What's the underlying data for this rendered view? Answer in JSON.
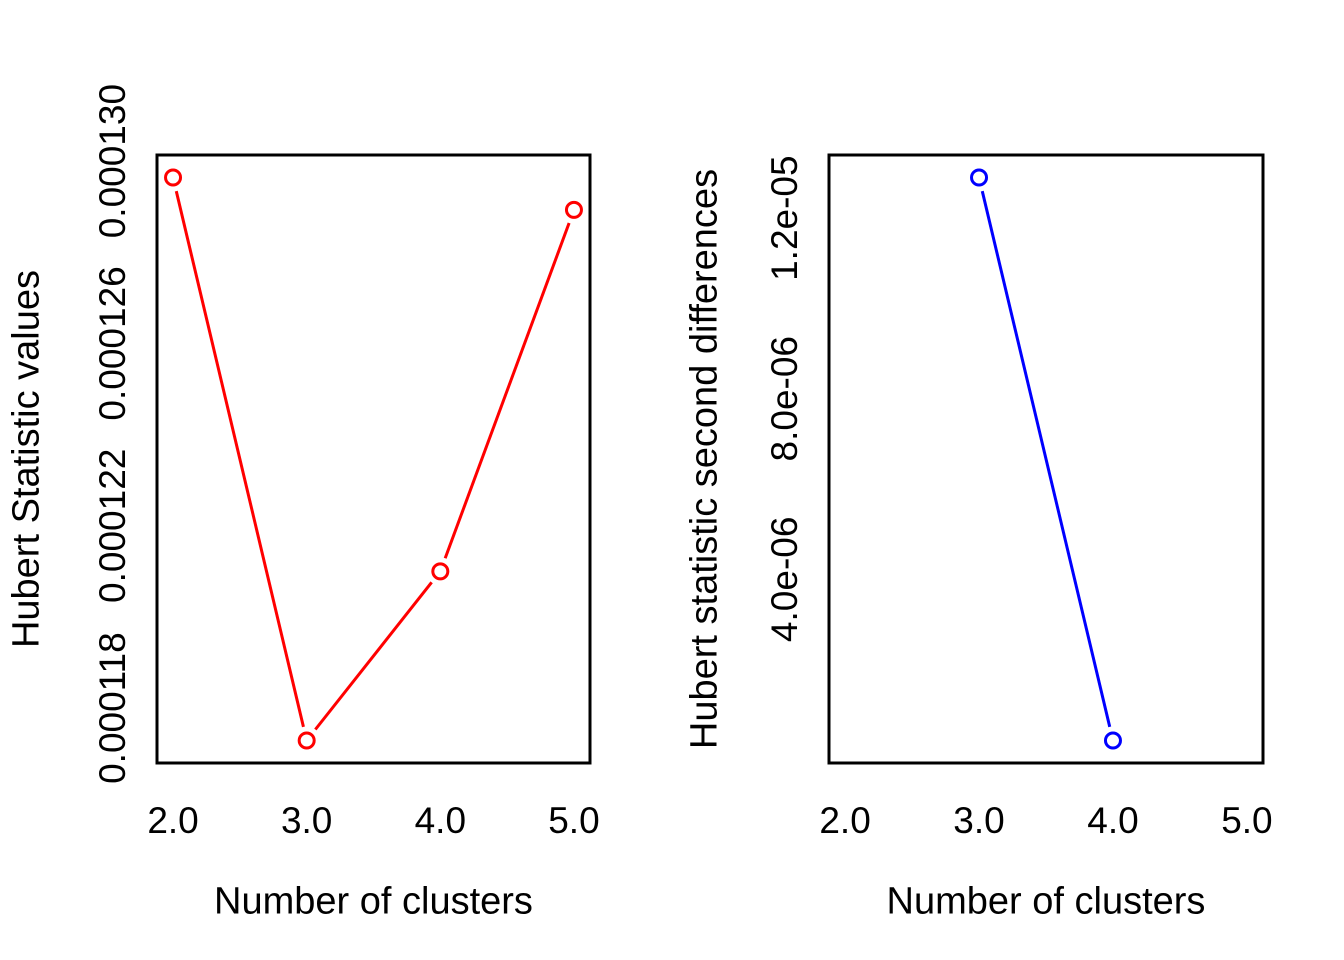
{
  "chart_data": [
    {
      "type": "line",
      "title": "",
      "xlabel": "Number of clusters",
      "ylabel": "Hubert Statistic values",
      "color": "#ff0000",
      "marker": "open-circle",
      "legend": "none",
      "grid": false,
      "x": [
        2,
        3,
        4,
        5
      ],
      "y": [
        0.00012964,
        0.00011729,
        0.000121,
        0.00012893
      ],
      "xlim": [
        2,
        5
      ],
      "ylim": [
        0.00011729,
        0.00012964
      ],
      "xticks": {
        "values": [
          2,
          3,
          4,
          5
        ],
        "labels": [
          "2.0",
          "3.0",
          "4.0",
          "5.0"
        ]
      },
      "yticks": {
        "values": [
          0.000118,
          0.000122,
          0.000126,
          0.00013
        ],
        "labels": [
          "0.000118",
          "0.000122",
          "0.000126",
          "0.000130"
        ]
      }
    },
    {
      "type": "line",
      "title": "",
      "xlabel": "Number of clusters",
      "ylabel": "Hubert statistic second differences",
      "color": "#0000ff",
      "marker": "open-circle",
      "legend": "none",
      "grid": false,
      "x": [
        3,
        4
      ],
      "y": [
        1.29e-05,
        4.3e-07
      ],
      "xlim": [
        2,
        5
      ],
      "ylim": [
        4.3e-07,
        1.29e-05
      ],
      "xticks": {
        "values": [
          2,
          3,
          4,
          5
        ],
        "labels": [
          "2.0",
          "3.0",
          "4.0",
          "5.0"
        ]
      },
      "yticks": {
        "values": [
          4e-06,
          8e-06,
          1.2e-05
        ],
        "labels": [
          "4.0e-06",
          "8.0e-06",
          "1.2e-05"
        ]
      }
    }
  ],
  "figure": {
    "background": "#ffffff",
    "frame_color": "#000000",
    "text_color": "#000000"
  }
}
